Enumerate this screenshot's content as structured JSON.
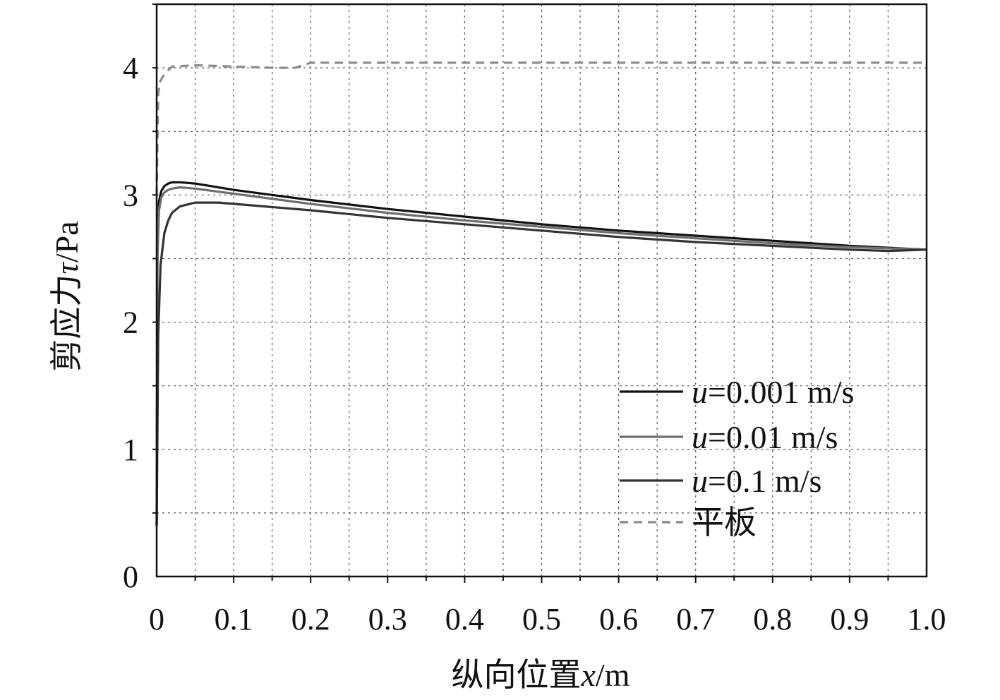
{
  "chart_data": {
    "type": "line",
    "title": "",
    "xlabel": {
      "prefix": "纵向位置",
      "var": "x",
      "unit": "/m"
    },
    "ylabel": {
      "prefix": "剪应力",
      "var": "τ",
      "unit": "/Pa"
    },
    "xlim": [
      0,
      1.0
    ],
    "ylim": [
      0,
      4.5
    ],
    "xticks": [
      0,
      0.1,
      0.2,
      0.3,
      0.4,
      0.5,
      0.6,
      0.7,
      0.8,
      0.9,
      1.0
    ],
    "xtick_labels": [
      "0",
      "0.1",
      "0.2",
      "0.3",
      "0.4",
      "0.5",
      "0.6",
      "0.7",
      "0.8",
      "0.9",
      "1.0"
    ],
    "yticks": [
      0,
      1,
      2,
      3,
      4
    ],
    "ytick_labels": [
      "0",
      "1",
      "2",
      "3",
      "4"
    ],
    "grid": true,
    "legend_position": "bottom-right",
    "series": [
      {
        "name": "u=0.001 m/s",
        "legend": {
          "var": "u",
          "rest": "=0.001 m/s"
        },
        "color": "#111111",
        "dash": false,
        "x": [
          0,
          0.001,
          0.003,
          0.006,
          0.01,
          0.015,
          0.02,
          0.03,
          0.05,
          0.1,
          0.2,
          0.3,
          0.4,
          0.5,
          0.6,
          0.7,
          0.8,
          0.9,
          1.0
        ],
        "y": [
          0.4,
          2.6,
          2.95,
          3.03,
          3.07,
          3.09,
          3.1,
          3.1,
          3.09,
          3.04,
          2.96,
          2.89,
          2.83,
          2.77,
          2.72,
          2.68,
          2.64,
          2.6,
          2.57
        ]
      },
      {
        "name": "u=0.01 m/s",
        "legend": {
          "var": "u",
          "rest": "=0.01 m/s"
        },
        "color": "#6e6e6e",
        "dash": false,
        "x": [
          0,
          0.001,
          0.003,
          0.006,
          0.01,
          0.015,
          0.02,
          0.03,
          0.05,
          0.1,
          0.2,
          0.3,
          0.4,
          0.5,
          0.6,
          0.7,
          0.8,
          0.9,
          1.0
        ],
        "y": [
          0.4,
          2.5,
          2.88,
          2.98,
          3.02,
          3.04,
          3.05,
          3.06,
          3.05,
          3.01,
          2.93,
          2.86,
          2.8,
          2.75,
          2.7,
          2.66,
          2.62,
          2.59,
          2.57
        ]
      },
      {
        "name": "u=0.1 m/s",
        "legend": {
          "var": "u",
          "rest": "=0.1 m/s"
        },
        "color": "#333333",
        "dash": false,
        "x": [
          0,
          0.002,
          0.005,
          0.01,
          0.015,
          0.02,
          0.03,
          0.05,
          0.08,
          0.1,
          0.2,
          0.3,
          0.4,
          0.5,
          0.6,
          0.7,
          0.8,
          0.9,
          0.95,
          1.0
        ],
        "y": [
          0.4,
          1.9,
          2.45,
          2.7,
          2.8,
          2.86,
          2.91,
          2.94,
          2.94,
          2.93,
          2.88,
          2.82,
          2.77,
          2.72,
          2.67,
          2.63,
          2.6,
          2.57,
          2.56,
          2.57
        ]
      },
      {
        "name": "平板",
        "legend": {
          "var": "",
          "rest": "平板"
        },
        "color": "#8c8c8c",
        "dash": true,
        "x": [
          0,
          0.002,
          0.005,
          0.01,
          0.02,
          0.05,
          0.1,
          0.15,
          0.18,
          0.2,
          0.3,
          0.5,
          0.7,
          1.0
        ],
        "y": [
          3.0,
          3.8,
          3.9,
          3.95,
          4.01,
          4.02,
          4.01,
          4.0,
          4.0,
          4.04,
          4.04,
          4.04,
          4.04,
          4.04
        ]
      }
    ]
  }
}
